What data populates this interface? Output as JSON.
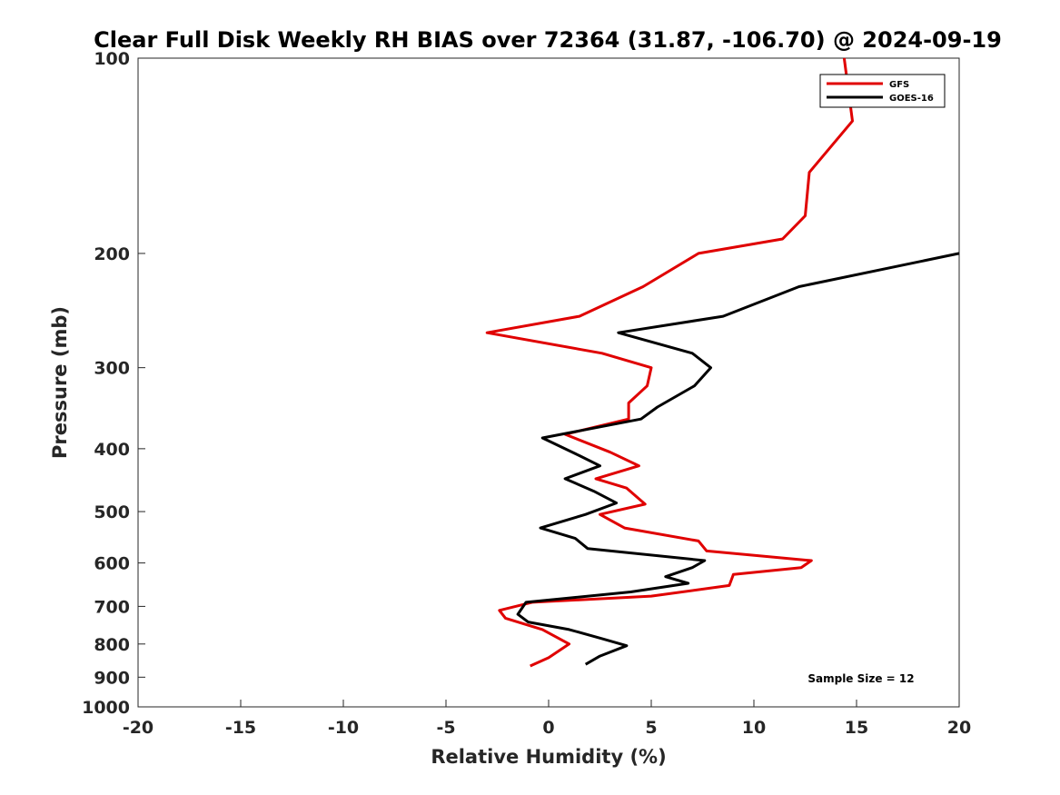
{
  "chart_data": {
    "type": "line",
    "title": "Clear Full Disk Weekly RH BIAS over 72364 (31.87, -106.70) @ 2024-09-19",
    "xlabel": "Relative Humidity (%)",
    "ylabel": "Pressure (mb)",
    "xlim": [
      -20,
      20
    ],
    "ylim": [
      1000,
      100
    ],
    "y_scale": "log",
    "y_reversed": true,
    "x_ticks": [
      -20,
      -15,
      -10,
      -5,
      0,
      5,
      10,
      15,
      20
    ],
    "x_tick_labels": [
      "-20",
      "-15",
      "-10",
      "-5",
      "0",
      "5",
      "10",
      "15",
      "20"
    ],
    "y_ticks": [
      100,
      200,
      300,
      400,
      500,
      600,
      700,
      800,
      900,
      1000
    ],
    "y_tick_labels": [
      "100",
      "200",
      "300",
      "400",
      "500",
      "600",
      "700",
      "800",
      "900",
      "1000"
    ],
    "grid": false,
    "legend_position": "top-right",
    "annotation": "Sample Size = 12",
    "series": [
      {
        "name": "GFS",
        "color": "#e00000",
        "points": [
          {
            "x": 14.4,
            "p": 100
          },
          {
            "x": 14.8,
            "p": 125
          },
          {
            "x": 12.7,
            "p": 150
          },
          {
            "x": 12.5,
            "p": 175
          },
          {
            "x": 11.4,
            "p": 190
          },
          {
            "x": 7.3,
            "p": 200
          },
          {
            "x": 4.6,
            "p": 225
          },
          {
            "x": 1.5,
            "p": 250
          },
          {
            "x": -3.0,
            "p": 265
          },
          {
            "x": 2.6,
            "p": 285
          },
          {
            "x": 5.0,
            "p": 300
          },
          {
            "x": 4.8,
            "p": 320
          },
          {
            "x": 3.9,
            "p": 340
          },
          {
            "x": 3.9,
            "p": 360
          },
          {
            "x": 0.8,
            "p": 380
          },
          {
            "x": 3.0,
            "p": 405
          },
          {
            "x": 4.4,
            "p": 425
          },
          {
            "x": 2.3,
            "p": 445
          },
          {
            "x": 3.8,
            "p": 460
          },
          {
            "x": 4.7,
            "p": 487
          },
          {
            "x": 2.5,
            "p": 505
          },
          {
            "x": 3.7,
            "p": 530
          },
          {
            "x": 7.3,
            "p": 555
          },
          {
            "x": 7.7,
            "p": 575
          },
          {
            "x": 12.8,
            "p": 595
          },
          {
            "x": 12.3,
            "p": 610
          },
          {
            "x": 9.0,
            "p": 625
          },
          {
            "x": 8.8,
            "p": 650
          },
          {
            "x": 5.0,
            "p": 675
          },
          {
            "x": -0.8,
            "p": 690
          },
          {
            "x": -2.4,
            "p": 710
          },
          {
            "x": -2.1,
            "p": 730
          },
          {
            "x": -0.3,
            "p": 760
          },
          {
            "x": 1.0,
            "p": 800
          },
          {
            "x": 0.0,
            "p": 840
          },
          {
            "x": -0.9,
            "p": 865
          }
        ]
      },
      {
        "name": "GOES-16",
        "color": "#000000",
        "points": [
          {
            "x": 20.0,
            "p": 200
          },
          {
            "x": 12.2,
            "p": 225
          },
          {
            "x": 8.5,
            "p": 250
          },
          {
            "x": 3.4,
            "p": 265
          },
          {
            "x": 7.0,
            "p": 285
          },
          {
            "x": 7.9,
            "p": 300
          },
          {
            "x": 7.1,
            "p": 320
          },
          {
            "x": 5.3,
            "p": 345
          },
          {
            "x": 4.5,
            "p": 360
          },
          {
            "x": -0.3,
            "p": 385
          },
          {
            "x": 1.5,
            "p": 410
          },
          {
            "x": 2.5,
            "p": 425
          },
          {
            "x": 0.8,
            "p": 445
          },
          {
            "x": 2.2,
            "p": 465
          },
          {
            "x": 3.3,
            "p": 485
          },
          {
            "x": 1.8,
            "p": 505
          },
          {
            "x": -0.4,
            "p": 530
          },
          {
            "x": 1.3,
            "p": 550
          },
          {
            "x": 1.9,
            "p": 570
          },
          {
            "x": 7.6,
            "p": 595
          },
          {
            "x": 7.0,
            "p": 610
          },
          {
            "x": 5.7,
            "p": 630
          },
          {
            "x": 6.8,
            "p": 645
          },
          {
            "x": 4.0,
            "p": 665
          },
          {
            "x": -1.1,
            "p": 690
          },
          {
            "x": -1.5,
            "p": 720
          },
          {
            "x": -1.0,
            "p": 740
          },
          {
            "x": 1.0,
            "p": 760
          },
          {
            "x": 2.6,
            "p": 785
          },
          {
            "x": 3.8,
            "p": 805
          },
          {
            "x": 2.5,
            "p": 835
          },
          {
            "x": 1.8,
            "p": 860
          }
        ]
      }
    ]
  }
}
